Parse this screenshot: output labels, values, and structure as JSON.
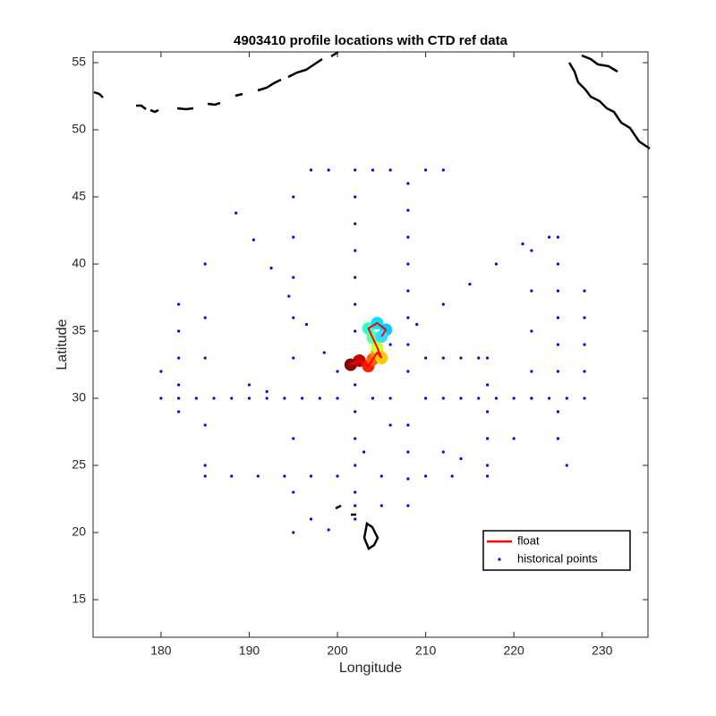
{
  "chart_data": {
    "type": "scatter",
    "title": "4903410 profile locations with CTD ref data",
    "x_label": "Longitude",
    "y_label": "Latitude",
    "xlim": [
      172.3,
      235.2
    ],
    "ylim": [
      12.2,
      55.8
    ],
    "xticks": [
      180,
      190,
      200,
      210,
      220,
      230
    ],
    "yticks": [
      15,
      20,
      25,
      30,
      35,
      40,
      45,
      50,
      55
    ],
    "legend": "lower right",
    "series": [
      {
        "name": "float",
        "type": "line",
        "color": "#ff0000",
        "point_colors": [
          "#8b0000",
          "#c00000",
          "#ff2000",
          "#ff6000",
          "#ff9900",
          "#ffcc00",
          "#ccff33",
          "#66ff99",
          "#33ffcc",
          "#00e5ff",
          "#00ccff",
          "#33ddff"
        ],
        "x": [
          201.5,
          202.5,
          203.5,
          204,
          204.5,
          205,
          204.5,
          204,
          203.5,
          204.5,
          205.5,
          205
        ],
        "y": [
          32.5,
          32.8,
          32.4,
          32.9,
          33.4,
          33.0,
          33.8,
          34.5,
          35.2,
          35.6,
          35.1,
          34.6
        ]
      },
      {
        "name": "historical points",
        "type": "scatter",
        "color": "#0000ff",
        "x": [
          180,
          182,
          184,
          186,
          188,
          190,
          192,
          194,
          196,
          198,
          200,
          204,
          206,
          210,
          212,
          214,
          216,
          218,
          220,
          222,
          224,
          226,
          228,
          202,
          202,
          202,
          202,
          202,
          202,
          202,
          202,
          202,
          202,
          202,
          202,
          202,
          202,
          202,
          208,
          208,
          208,
          208,
          208,
          208,
          208,
          208,
          208,
          208,
          208,
          208,
          188.5,
          190.5,
          192.5,
          194.5,
          196.5,
          198.5,
          200,
          206,
          209,
          212,
          215,
          218,
          221,
          224,
          185,
          188,
          191,
          194,
          197,
          200,
          205,
          210,
          213,
          217,
          217,
          217,
          217,
          217,
          217,
          210,
          212,
          214,
          216,
          225,
          225,
          225,
          225,
          225,
          225,
          225,
          225,
          195,
          195,
          195,
          195,
          195,
          195,
          195,
          195,
          182,
          182,
          182,
          182,
          182,
          185,
          185,
          185,
          185,
          185,
          222,
          222,
          222,
          222,
          222,
          228,
          228,
          228,
          228,
          197,
          199,
          204,
          206,
          210,
          212,
          190,
          192,
          203,
          212,
          214,
          197,
          199,
          206,
          220,
          226,
          205,
          180
        ],
        "y": [
          30,
          30,
          30,
          30,
          30,
          30,
          30,
          30,
          30,
          30,
          30,
          30,
          30,
          30,
          30,
          30,
          30,
          30,
          30,
          30,
          30,
          30,
          30,
          21,
          22,
          23,
          25,
          27,
          29,
          31,
          33,
          35,
          37,
          39,
          41,
          43,
          45,
          47,
          22,
          24,
          26,
          28,
          32,
          34,
          36,
          38,
          40,
          42,
          44,
          46,
          43.8,
          41.8,
          39.7,
          37.6,
          35.5,
          33.4,
          32,
          34,
          35.5,
          37,
          38.5,
          40,
          41.5,
          42,
          24.2,
          24.2,
          24.2,
          24.2,
          24.2,
          24.2,
          24.2,
          24.2,
          24.2,
          24.2,
          25,
          27,
          29,
          31,
          33,
          33,
          33,
          33,
          33,
          27,
          29,
          32,
          34,
          36,
          38,
          40,
          42,
          20,
          23,
          27,
          33,
          36,
          39,
          42,
          45,
          29,
          31,
          33,
          35,
          37,
          25,
          28,
          33,
          36,
          40,
          30,
          32,
          35,
          38,
          41,
          32,
          34,
          36,
          38,
          47,
          47,
          47,
          47,
          47,
          47,
          31,
          30.5,
          26,
          26,
          25.5,
          21,
          20.2,
          28,
          27,
          25,
          22,
          32
        ]
      }
    ]
  }
}
